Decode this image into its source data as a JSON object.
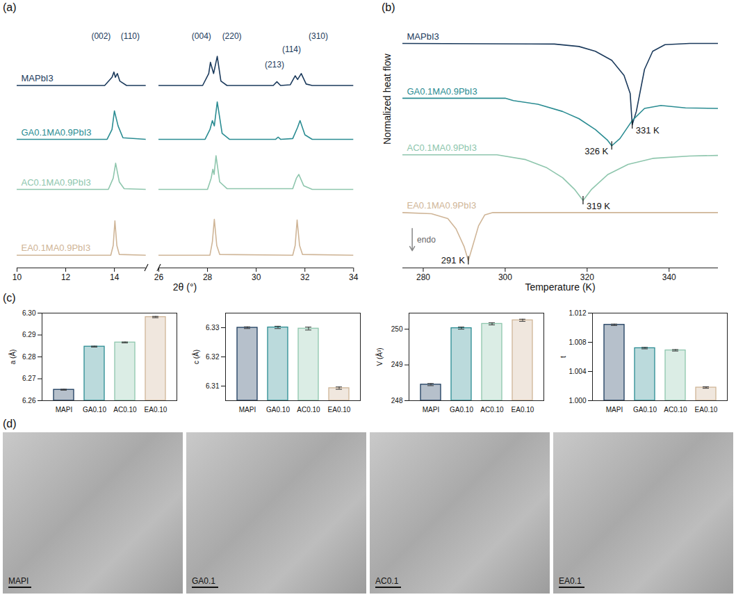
{
  "chart_data": [
    {
      "panel": "(a)",
      "type": "line",
      "x_label": "2θ (°)",
      "x_segments": [
        {
          "xlim": [
            10,
            15.3
          ],
          "xticks": [
            10,
            12,
            14
          ]
        },
        {
          "xlim": [
            26,
            34
          ],
          "xticks": [
            26,
            28,
            30,
            32,
            34
          ]
        }
      ],
      "ylim": [
        0,
        3.3
      ],
      "tick_labels": "x",
      "series": [
        {
          "name": "MAPbI3",
          "color": "#1b3a5c",
          "x": [
            10,
            13.6,
            13.9,
            13.98,
            14.04,
            14.12,
            14.22,
            14.5,
            15.3,
            26,
            27.8,
            28.05,
            28.12,
            28.25,
            28.4,
            28.55,
            28.8,
            30.7,
            30.85,
            31.0,
            31.4,
            31.6,
            31.7,
            31.85,
            32.05,
            32.3,
            34
          ],
          "values": [
            2.44,
            2.44,
            2.55,
            2.62,
            2.55,
            2.6,
            2.5,
            2.44,
            2.44,
            2.44,
            2.44,
            2.6,
            2.75,
            2.6,
            2.83,
            2.5,
            2.44,
            2.44,
            2.49,
            2.44,
            2.45,
            2.57,
            2.52,
            2.6,
            2.46,
            2.44,
            2.44
          ]
        },
        {
          "name": "GA0.1MA0.9PbI3",
          "color": "#2a8c92",
          "x": [
            10,
            13.7,
            13.9,
            14.0,
            14.15,
            14.35,
            15.3,
            26,
            27.9,
            28.1,
            28.2,
            28.28,
            28.4,
            28.6,
            28.9,
            30.8,
            30.9,
            31.0,
            31.5,
            31.7,
            31.8,
            32.0,
            32.3,
            34
          ],
          "values": [
            1.72,
            1.72,
            1.85,
            2.1,
            1.9,
            1.74,
            1.72,
            1.72,
            1.72,
            1.85,
            1.97,
            1.9,
            2.22,
            1.8,
            1.72,
            1.72,
            1.75,
            1.72,
            1.73,
            1.88,
            1.97,
            1.78,
            1.72,
            1.72
          ]
        },
        {
          "name": "AC0.1MA0.9PbI3",
          "color": "#8ec6ad",
          "x": [
            10,
            13.75,
            13.95,
            14.05,
            14.2,
            14.4,
            15.3,
            26,
            28.0,
            28.15,
            28.22,
            28.27,
            28.35,
            28.5,
            28.8,
            31.5,
            31.65,
            31.75,
            31.95,
            32.3,
            34
          ],
          "values": [
            1.05,
            1.05,
            1.2,
            1.4,
            1.15,
            1.06,
            1.05,
            1.05,
            1.05,
            1.2,
            1.32,
            1.25,
            1.5,
            1.15,
            1.06,
            1.06,
            1.2,
            1.25,
            1.1,
            1.05,
            1.05
          ]
        },
        {
          "name": "EA0.1MA0.9PbI3",
          "color": "#cfb597",
          "x": [
            10,
            13.85,
            13.95,
            14.02,
            14.1,
            14.2,
            15.3,
            26,
            28.1,
            28.2,
            28.28,
            28.38,
            28.5,
            31.5,
            31.6,
            31.68,
            31.78,
            31.9,
            34
          ],
          "values": [
            0.17,
            0.17,
            0.3,
            0.63,
            0.3,
            0.18,
            0.17,
            0.17,
            0.17,
            0.35,
            0.65,
            0.3,
            0.18,
            0.17,
            0.3,
            0.64,
            0.3,
            0.18,
            0.17
          ]
        }
      ],
      "peak_labels": [
        {
          "x": 13.45,
          "y": 3.1,
          "text": "(002)"
        },
        {
          "x": 14.65,
          "y": 3.1,
          "text": "(110)"
        },
        {
          "x": 27.75,
          "y": 3.1,
          "text": "(004)"
        },
        {
          "x": 29.0,
          "y": 3.1,
          "text": "(220)"
        },
        {
          "x": 30.75,
          "y": 2.72,
          "text": "(213)"
        },
        {
          "x": 31.45,
          "y": 2.92,
          "text": "(114)"
        },
        {
          "x": 32.55,
          "y": 3.1,
          "text": "(310)"
        }
      ]
    },
    {
      "panel": "(b)",
      "type": "line",
      "x_label": "Temperature (K)",
      "y_label": "Normalized heat flow",
      "xlim": [
        275,
        352
      ],
      "xticks": [
        280,
        300,
        320,
        340
      ],
      "ylim": [
        0,
        4.1
      ],
      "tick_labels": "x",
      "series": [
        {
          "name": "MAPbI3",
          "color": "#1b3a5c",
          "x": [
            275,
            312,
            318,
            322,
            326,
            329,
            330.5,
            331,
            332,
            334,
            336,
            339,
            345,
            352
          ],
          "values": [
            3.73,
            3.72,
            3.68,
            3.6,
            3.45,
            3.2,
            2.9,
            2.38,
            2.6,
            3.3,
            3.6,
            3.71,
            3.73,
            3.73
          ]
        },
        {
          "name": "GA0.1MA0.9PbI3",
          "color": "#2a8c92",
          "x": [
            275,
            300,
            302,
            308,
            314,
            318,
            322,
            325,
            326,
            328,
            331,
            334,
            338,
            344,
            352
          ],
          "values": [
            2.82,
            2.82,
            2.78,
            2.72,
            2.6,
            2.48,
            2.3,
            2.12,
            2.03,
            2.15,
            2.45,
            2.65,
            2.7,
            2.66,
            2.65
          ]
        },
        {
          "name": "AC0.1MA0.9PbI3",
          "color": "#8ec6ad",
          "x": [
            275,
            298,
            305,
            310,
            314,
            317,
            319,
            321,
            325,
            330,
            336,
            345,
            352
          ],
          "values": [
            1.88,
            1.88,
            1.8,
            1.67,
            1.5,
            1.3,
            1.12,
            1.3,
            1.55,
            1.72,
            1.82,
            1.86,
            1.87
          ]
        },
        {
          "name": "EA0.1MA0.9PbI3",
          "color": "#cfb597",
          "x": [
            275,
            282,
            286,
            288,
            290,
            291,
            292,
            293.5,
            295,
            297,
            352
          ],
          "values": [
            0.92,
            0.9,
            0.82,
            0.65,
            0.35,
            0.12,
            0.35,
            0.7,
            0.88,
            0.92,
            0.92
          ]
        }
      ],
      "annotations": [
        {
          "x": 331,
          "y": 2.38,
          "text": "331 K"
        },
        {
          "x": 326,
          "y": 2.03,
          "text": "326 K"
        },
        {
          "x": 319,
          "y": 1.12,
          "text": "319 K"
        },
        {
          "x": 291,
          "y": 0.12,
          "text": "291 K"
        }
      ],
      "arrow_label": "endo"
    },
    {
      "panel": "(c)",
      "type": "bar",
      "y_label": "a (Å)",
      "categories": [
        "MAPI",
        "GA0.10",
        "AC0.10",
        "EA0.10"
      ],
      "colors": [
        "#1b3a5c",
        "#2a8c92",
        "#8ec6ad",
        "#cfb597"
      ],
      "values": [
        6.265,
        6.2847,
        6.2866,
        6.2982
      ],
      "errors": [
        0.0002,
        0.0002,
        0.0002,
        0.0003
      ],
      "ylim": [
        6.26,
        6.3
      ],
      "yticks": [
        6.26,
        6.27,
        6.28,
        6.29,
        {
          "value": 6.3,
          "label": "6.30"
        }
      ]
    },
    {
      "type": "bar",
      "y_label": "c (Å)",
      "categories": [
        "MAPI",
        "GA0.10",
        "AC0.10",
        "EA0.10"
      ],
      "colors": [
        "#1b3a5c",
        "#2a8c92",
        "#8ec6ad",
        "#cfb597"
      ],
      "values": [
        6.33,
        6.3301,
        6.3297,
        6.3093
      ],
      "errors": [
        0.0003,
        0.0004,
        0.0005,
        0.0004
      ],
      "ylim": [
        6.305,
        6.335
      ],
      "yticks": [
        6.31,
        6.32,
        6.33
      ]
    },
    {
      "type": "bar",
      "y_label": "V (Å³)",
      "categories": [
        "MAPI",
        "GA0.10",
        "AC0.10",
        "EA0.10"
      ],
      "colors": [
        "#1b3a5c",
        "#2a8c92",
        "#8ec6ad",
        "#cfb597"
      ],
      "values": [
        248.45,
        250.03,
        250.15,
        250.25
      ],
      "errors": [
        0.03,
        0.03,
        0.03,
        0.03
      ],
      "ylim": [
        248,
        250.45
      ],
      "yticks": [
        248,
        249,
        250
      ]
    },
    {
      "type": "bar",
      "y_label": "t",
      "categories": [
        "MAPI",
        "GA0.10",
        "AC0.10",
        "EA0.10"
      ],
      "colors": [
        "#1b3a5c",
        "#2a8c92",
        "#8ec6ad",
        "#cfb597"
      ],
      "values": [
        1.0104,
        1.0072,
        1.0069,
        1.0018
      ],
      "errors": [
        0.0001,
        0.0001,
        0.0001,
        0.0001
      ],
      "ylim": [
        1.0,
        1.012
      ],
      "yticks": [
        {
          "value": 1.0,
          "label": "1.000"
        },
        1.004,
        1.008,
        1.012
      ]
    },
    {
      "panel": "(d)",
      "type": "image",
      "images": [
        "MAPI",
        "GA0.1",
        "AC0.1",
        "EA0.1"
      ]
    }
  ]
}
